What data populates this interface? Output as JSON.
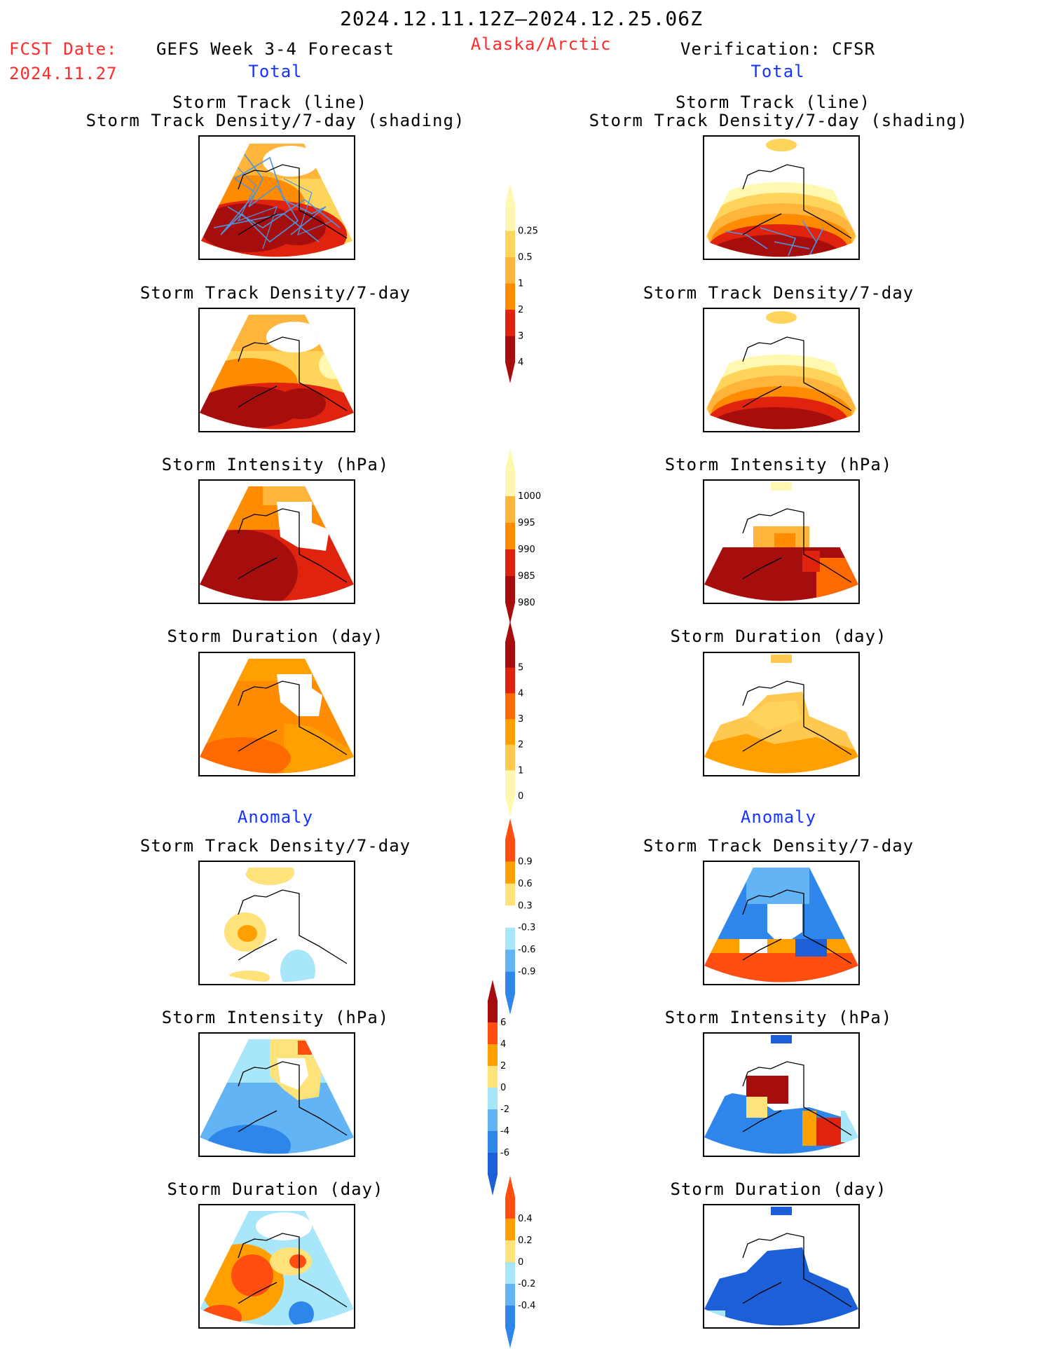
{
  "header": {
    "period": "2024.12.11.12Z–2024.12.25.06Z",
    "fcst_label": "FCST Date:",
    "fcst_date": "2024.11.27",
    "forecast_title": "GEFS Week 3-4 Forecast",
    "region": "Alaska/Arctic",
    "verification_title": "Verification: CFSR"
  },
  "columns": {
    "left_total": "Total",
    "right_total": "Total",
    "left_anomaly": "Anomaly",
    "right_anomaly": "Anomaly"
  },
  "panel_titles": {
    "track_line": "Storm Track (line)",
    "track_shading": "Storm Track Density/7-day (shading)",
    "density": "Storm Track Density/7-day",
    "intensity": "Storm Intensity (hPa)",
    "duration": "Storm Duration (day)"
  },
  "colors": {
    "c_lightyellow": "#fff8b0",
    "c_yellow": "#ffd45a",
    "c_lightorange": "#ffb43c",
    "c_orange": "#ffa000",
    "c_darkorange": "#ff6a00",
    "c_red": "#e0230f",
    "c_darkred": "#a60e0e",
    "c_lightblue": "#a8e6fa",
    "c_midblue": "#62b4f5",
    "c_blue": "#2f86ea",
    "c_darkblue": "#1c5fd6",
    "c_track": "#4a96e0"
  },
  "chart_data": [
    {
      "type": "heatmap",
      "title": "Storm Track (line) / Storm Track Density/7-day (shading)",
      "column": "GEFS Week 3-4 Forecast",
      "quantity": "storm track density per 7 days"
    },
    {
      "type": "heatmap",
      "title": "Storm Track (line) / Storm Track Density/7-day (shading)",
      "column": "Verification: CFSR",
      "quantity": "storm track density per 7 days"
    },
    {
      "type": "heatmap",
      "title": "Storm Track Density/7-day",
      "column": "GEFS Week 3-4 Forecast"
    },
    {
      "type": "heatmap",
      "title": "Storm Track Density/7-day",
      "column": "Verification: CFSR"
    },
    {
      "type": "heatmap",
      "title": "Storm Intensity (hPa)",
      "column": "GEFS Week 3-4 Forecast"
    },
    {
      "type": "heatmap",
      "title": "Storm Intensity (hPa)",
      "column": "Verification: CFSR"
    },
    {
      "type": "heatmap",
      "title": "Storm Duration (day)",
      "column": "GEFS Week 3-4 Forecast"
    },
    {
      "type": "heatmap",
      "title": "Storm Duration (day)",
      "column": "Verification: CFSR"
    },
    {
      "type": "heatmap",
      "title": "Anomaly Storm Track Density/7-day",
      "column": "GEFS Week 3-4 Forecast"
    },
    {
      "type": "heatmap",
      "title": "Anomaly Storm Track Density/7-day",
      "column": "Verification: CFSR"
    },
    {
      "type": "heatmap",
      "title": "Anomaly Storm Intensity (hPa)",
      "column": "GEFS Week 3-4 Forecast"
    },
    {
      "type": "heatmap",
      "title": "Anomaly Storm Intensity (hPa)",
      "column": "Verification: CFSR"
    },
    {
      "type": "heatmap",
      "title": "Anomaly Storm Duration (day)",
      "column": "GEFS Week 3-4 Forecast"
    },
    {
      "type": "heatmap",
      "title": "Anomaly Storm Duration (day)",
      "column": "Verification: CFSR"
    }
  ],
  "colorbars": {
    "density": {
      "levels": [
        "0.25",
        "0.5",
        "1",
        "2",
        "3",
        "4"
      ],
      "colors": [
        "#fff8b0",
        "#ffd45a",
        "#ffb43c",
        "#ff8c00",
        "#e0230f",
        "#a60e0e"
      ]
    },
    "intensity": {
      "levels": [
        "1000",
        "995",
        "990",
        "985",
        "980"
      ],
      "colors": [
        "#fff8b0",
        "#ffb43c",
        "#ff8c00",
        "#e0230f",
        "#a60e0e"
      ]
    },
    "duration": {
      "levels": [
        "5",
        "4",
        "3",
        "2",
        "1",
        "0"
      ],
      "colors": [
        "#a60e0e",
        "#e0230f",
        "#ff6a00",
        "#ffa000",
        "#ffc850",
        "#fff8b0"
      ]
    },
    "density_anom": {
      "levels": [
        "0.9",
        "0.6",
        "0.3",
        "-0.3",
        "-0.6",
        "-0.9"
      ],
      "colors": [
        "#ff4e10",
        "#ffa000",
        "#ffe27a",
        "#ffffff",
        "#a8e6fa",
        "#62b4f5",
        "#2f86ea"
      ]
    },
    "intensity_anom": {
      "levels": [
        "6",
        "4",
        "2",
        "0",
        "-2",
        "-4",
        "-6"
      ],
      "colors": [
        "#a60e0e",
        "#ff4e10",
        "#ffa000",
        "#ffe27a",
        "#a8e6fa",
        "#62b4f5",
        "#2f86ea",
        "#1c5fd6"
      ]
    },
    "duration_anom": {
      "levels": [
        "0.4",
        "0.2",
        "0",
        "-0.2",
        "-0.4"
      ],
      "colors": [
        "#ff4e10",
        "#ffa000",
        "#ffe27a",
        "#a8e6fa",
        "#62b4f5",
        "#2f86ea"
      ]
    }
  }
}
